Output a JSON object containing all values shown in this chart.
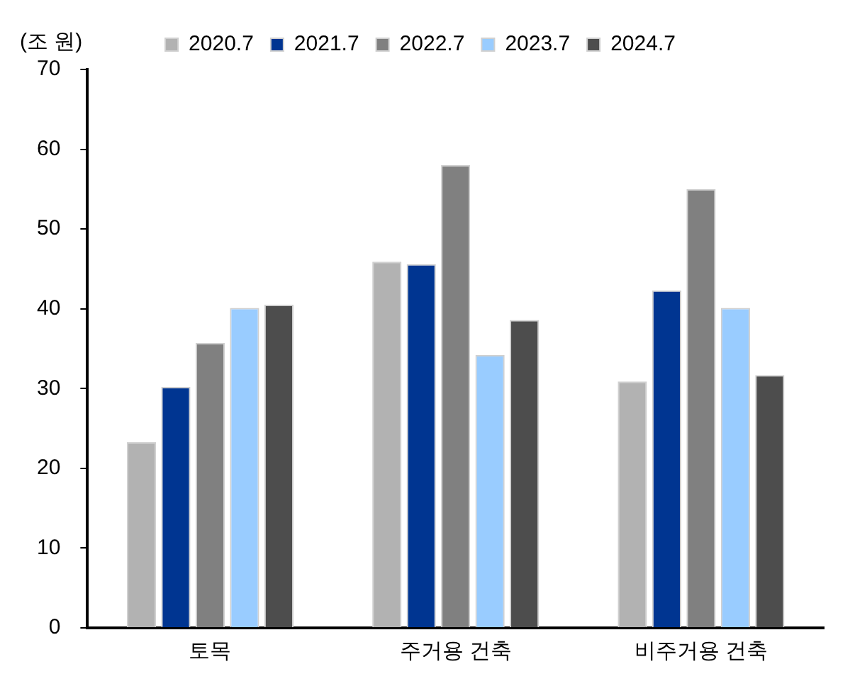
{
  "chart_data": {
    "type": "bar",
    "ylabel": "(조 원)",
    "categories": [
      "토목",
      "주거용 건축",
      "비주거용 건축"
    ],
    "series": [
      {
        "name": "2020.7",
        "color": "#b2b2b2",
        "values": [
          23.3,
          45.9,
          30.9
        ]
      },
      {
        "name": "2021.7",
        "color": "#003591",
        "values": [
          30.2,
          45.6,
          42.3
        ]
      },
      {
        "name": "2022.7",
        "color": "#808080",
        "values": [
          35.7,
          58.0,
          55.0
        ]
      },
      {
        "name": "2023.7",
        "color": "#99ccff",
        "values": [
          40.1,
          34.2,
          40.1
        ]
      },
      {
        "name": "2024.7",
        "color": "#4d4d4d",
        "values": [
          40.5,
          38.6,
          31.7
        ]
      }
    ],
    "ylim": [
      0,
      70
    ],
    "yticks": [
      0,
      10,
      20,
      30,
      40,
      50,
      60,
      70
    ],
    "grid": false,
    "legend": "top"
  }
}
